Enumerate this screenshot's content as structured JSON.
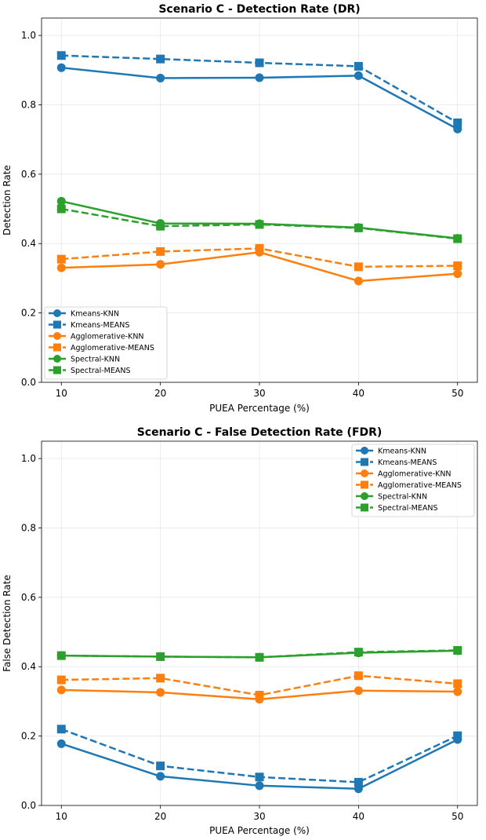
{
  "chart_data": [
    {
      "type": "line",
      "title": "Scenario C - Detection Rate (DR)",
      "xlabel": "PUEA Percentage (%)",
      "ylabel": "Detection Rate",
      "x": [
        10,
        20,
        30,
        40,
        50
      ],
      "xticks": [
        "10",
        "20",
        "30",
        "40",
        "50"
      ],
      "xlim": [
        8,
        52
      ],
      "ylim": [
        0,
        1.05
      ],
      "yticks": [
        "0.0",
        "0.2",
        "0.4",
        "0.6",
        "0.8",
        "1.0"
      ],
      "grid": true,
      "legend_position": "lower-left",
      "series": [
        {
          "name": "Kmeans-KNN",
          "values": [
            0.907,
            0.877,
            0.878,
            0.884,
            0.73
          ],
          "color": "#1f77b4",
          "linestyle": "solid",
          "marker": "circle"
        },
        {
          "name": "Kmeans-MEANS",
          "values": [
            0.942,
            0.932,
            0.921,
            0.911,
            0.748
          ],
          "color": "#1f77b4",
          "linestyle": "dashed",
          "marker": "square"
        },
        {
          "name": "Agglomerative-KNN",
          "values": [
            0.33,
            0.34,
            0.375,
            0.292,
            0.313
          ],
          "color": "#ff7f0e",
          "linestyle": "solid",
          "marker": "circle"
        },
        {
          "name": "Agglomerative-MEANS",
          "values": [
            0.355,
            0.377,
            0.386,
            0.333,
            0.336
          ],
          "color": "#ff7f0e",
          "linestyle": "dashed",
          "marker": "square"
        },
        {
          "name": "Spectral-KNN",
          "values": [
            0.522,
            0.458,
            0.457,
            0.446,
            0.415
          ],
          "color": "#2ca02c",
          "linestyle": "solid",
          "marker": "circle"
        },
        {
          "name": "Spectral-MEANS",
          "values": [
            0.5,
            0.45,
            0.455,
            0.445,
            0.414
          ],
          "color": "#2ca02c",
          "linestyle": "dashed",
          "marker": "square"
        }
      ]
    },
    {
      "type": "line",
      "title": "Scenario C - False Detection Rate (FDR)",
      "xlabel": "PUEA Percentage (%)",
      "ylabel": "False Detection Rate",
      "x": [
        10,
        20,
        30,
        40,
        50
      ],
      "xticks": [
        "10",
        "20",
        "30",
        "40",
        "50"
      ],
      "xlim": [
        8,
        52
      ],
      "ylim": [
        0,
        1.05
      ],
      "yticks": [
        "0.0",
        "0.2",
        "0.4",
        "0.6",
        "0.8",
        "1.0"
      ],
      "grid": true,
      "legend_position": "upper-right",
      "series": [
        {
          "name": "Kmeans-KNN",
          "values": [
            0.178,
            0.084,
            0.057,
            0.048,
            0.19
          ],
          "color": "#1f77b4",
          "linestyle": "solid",
          "marker": "circle"
        },
        {
          "name": "Kmeans-MEANS",
          "values": [
            0.22,
            0.114,
            0.082,
            0.067,
            0.201
          ],
          "color": "#1f77b4",
          "linestyle": "dashed",
          "marker": "square"
        },
        {
          "name": "Agglomerative-KNN",
          "values": [
            0.333,
            0.326,
            0.306,
            0.331,
            0.328
          ],
          "color": "#ff7f0e",
          "linestyle": "solid",
          "marker": "circle"
        },
        {
          "name": "Agglomerative-MEANS",
          "values": [
            0.362,
            0.367,
            0.318,
            0.374,
            0.351
          ],
          "color": "#ff7f0e",
          "linestyle": "dashed",
          "marker": "square"
        },
        {
          "name": "Spectral-KNN",
          "values": [
            0.432,
            0.429,
            0.427,
            0.44,
            0.446
          ],
          "color": "#2ca02c",
          "linestyle": "solid",
          "marker": "circle"
        },
        {
          "name": "Spectral-MEANS",
          "values": [
            0.432,
            0.429,
            0.427,
            0.442,
            0.447
          ],
          "color": "#2ca02c",
          "linestyle": "dashed",
          "marker": "square"
        }
      ]
    }
  ]
}
